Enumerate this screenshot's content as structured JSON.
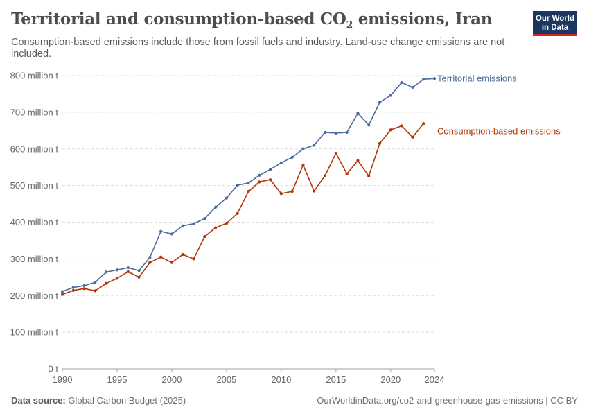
{
  "header": {
    "title_main": "Territorial and consumption-based CO",
    "title_sub": "2",
    "title_rest": " emissions, Iran",
    "subtitle": "Consumption-based emissions include those from fossil fuels and industry. Land-use change emissions are not included."
  },
  "logo": {
    "line1": "Our World",
    "line2": "in Data"
  },
  "footer": {
    "source_label": "Data source:",
    "source_value": " Global Carbon Budget (2025)",
    "url": "OurWorldinData.org/co2-and-greenhouse-gas-emissions | CC BY"
  },
  "colors": {
    "territorial": "#4c6a9c",
    "consumption": "#b13507",
    "grid": "#dddddd",
    "axis_text": "#666666"
  },
  "chart_data": {
    "type": "line",
    "xlim": [
      1990,
      2024
    ],
    "ylim": [
      0,
      800
    ],
    "x_ticks": [
      1990,
      1995,
      2000,
      2005,
      2010,
      2015,
      2020,
      2024
    ],
    "y_ticks": [
      {
        "value": 0,
        "label": "0 t"
      },
      {
        "value": 100,
        "label": "100 million t"
      },
      {
        "value": 200,
        "label": "200 million t"
      },
      {
        "value": 300,
        "label": "300 million t"
      },
      {
        "value": 400,
        "label": "400 million t"
      },
      {
        "value": 500,
        "label": "500 million t"
      },
      {
        "value": 600,
        "label": "600 million t"
      },
      {
        "value": 700,
        "label": "700 million t"
      },
      {
        "value": 800,
        "label": "800 million t"
      }
    ],
    "grid": true,
    "series": [
      {
        "name": "Territorial emissions",
        "color": "#4c6a9c",
        "x": [
          1990,
          1991,
          1992,
          1993,
          1994,
          1995,
          1996,
          1997,
          1998,
          1999,
          2000,
          2001,
          2002,
          2003,
          2004,
          2005,
          2006,
          2007,
          2008,
          2009,
          2010,
          2011,
          2012,
          2013,
          2014,
          2015,
          2016,
          2017,
          2018,
          2019,
          2020,
          2021,
          2022,
          2023,
          2024
        ],
        "y": [
          211,
          222,
          227,
          236,
          264,
          270,
          276,
          268,
          304,
          375,
          368,
          390,
          396,
          410,
          441,
          466,
          501,
          507,
          528,
          544,
          562,
          577,
          600,
          610,
          645,
          643,
          645,
          697,
          665,
          727,
          746,
          781,
          768,
          790,
          792
        ]
      },
      {
        "name": "Consumption-based emissions",
        "color": "#b13507",
        "x": [
          1990,
          1991,
          1992,
          1993,
          1994,
          1995,
          1996,
          1997,
          1998,
          1999,
          2000,
          2001,
          2002,
          2003,
          2004,
          2005,
          2006,
          2007,
          2008,
          2009,
          2010,
          2011,
          2012,
          2013,
          2014,
          2015,
          2016,
          2017,
          2018,
          2019,
          2020,
          2021,
          2022,
          2023
        ],
        "y": [
          203,
          214,
          219,
          213,
          233,
          247,
          265,
          250,
          290,
          305,
          290,
          312,
          300,
          361,
          385,
          397,
          424,
          484,
          510,
          516,
          478,
          484,
          556,
          485,
          527,
          588,
          532,
          568,
          526,
          615,
          652,
          663,
          632,
          669
        ]
      }
    ]
  }
}
